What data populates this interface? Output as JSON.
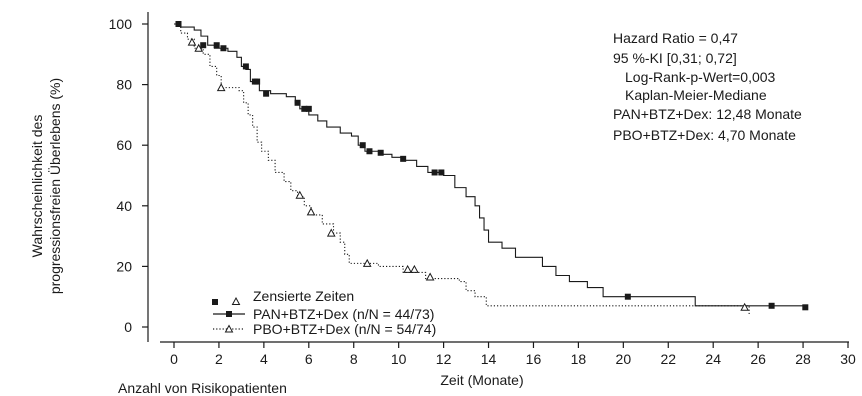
{
  "chart_data": {
    "type": "line",
    "subtype": "kaplan-meier",
    "xlabel": "Zeit (Monate)",
    "ylabel_line1": "Wahrscheinlichkeit des",
    "ylabel_line2": "progressionsfreien Überlebens (%)",
    "footer_label": "Anzahl von Risikopatienten",
    "xlim": [
      0,
      30
    ],
    "ylim": [
      0,
      100
    ],
    "x_ticks": [
      0,
      2,
      4,
      6,
      8,
      10,
      12,
      14,
      16,
      18,
      20,
      22,
      24,
      26,
      28,
      30
    ],
    "y_ticks": [
      0,
      20,
      40,
      60,
      80,
      100
    ],
    "grid": false,
    "annotations": [
      "Hazard Ratio = 0,47",
      "95 %-KI [0,31; 0,72]",
      "Log-Rank-p-Wert=0,003",
      "Kaplan-Meier-Mediane",
      "PAN+BTZ+Dex: 12,48 Monate",
      "PBO+BTZ+Dex: 4,70 Monate"
    ],
    "legend": {
      "placement": "bottom-left",
      "censor_label": "Zensierte Zeiten",
      "entries": [
        "PAN+BTZ+Dex (n/N = 44/73)",
        "PBO+BTZ+Dex (n/N = 54/74)"
      ]
    },
    "series": [
      {
        "name": "PAN+BTZ+Dex (n/N = 44/73)",
        "line_style": "solid",
        "marker": "filled-square",
        "color": "#1a1a1a",
        "steps": [
          [
            0,
            100
          ],
          [
            0.3,
            99
          ],
          [
            0.9,
            98
          ],
          [
            1.2,
            96
          ],
          [
            1.5,
            93
          ],
          [
            1.8,
            92
          ],
          [
            2.4,
            91
          ],
          [
            2.8,
            89
          ],
          [
            3.0,
            86
          ],
          [
            3.2,
            85
          ],
          [
            3.4,
            81
          ],
          [
            3.8,
            78
          ],
          [
            4.3,
            77
          ],
          [
            5.0,
            76
          ],
          [
            5.4,
            74
          ],
          [
            5.6,
            72
          ],
          [
            6.0,
            70
          ],
          [
            6.4,
            68
          ],
          [
            6.8,
            66
          ],
          [
            7.4,
            64
          ],
          [
            7.9,
            63
          ],
          [
            8.2,
            60
          ],
          [
            8.5,
            58
          ],
          [
            9.3,
            57
          ],
          [
            9.7,
            56
          ],
          [
            10.3,
            55
          ],
          [
            10.8,
            53
          ],
          [
            11.3,
            51
          ],
          [
            12.0,
            50
          ],
          [
            12.5,
            46
          ],
          [
            13.0,
            43
          ],
          [
            13.4,
            40
          ],
          [
            13.6,
            36
          ],
          [
            13.8,
            32
          ],
          [
            14.0,
            28
          ],
          [
            14.6,
            26
          ],
          [
            15.2,
            23
          ],
          [
            16.4,
            20
          ],
          [
            17.0,
            17
          ],
          [
            17.6,
            15
          ],
          [
            18.4,
            13
          ],
          [
            19.1,
            10
          ],
          [
            23.2,
            7
          ],
          [
            28,
            7
          ]
        ],
        "censored": [
          [
            0.2,
            100
          ],
          [
            1.3,
            93
          ],
          [
            1.9,
            93
          ],
          [
            2.2,
            92
          ],
          [
            3.2,
            86
          ],
          [
            3.6,
            81
          ],
          [
            3.7,
            81
          ],
          [
            4.1,
            77
          ],
          [
            5.5,
            74
          ],
          [
            5.8,
            72
          ],
          [
            6.0,
            72
          ],
          [
            8.4,
            60
          ],
          [
            8.7,
            58
          ],
          [
            9.2,
            57.5
          ],
          [
            10.2,
            55.5
          ],
          [
            11.6,
            51
          ],
          [
            11.9,
            51
          ],
          [
            20.2,
            10
          ],
          [
            26.6,
            7
          ],
          [
            28.1,
            6.5
          ]
        ]
      },
      {
        "name": "PBO+BTZ+Dex (n/N = 54/74)",
        "line_style": "dotted",
        "marker": "open-triangle",
        "color": "#1a1a1a",
        "steps": [
          [
            0,
            100
          ],
          [
            0.3,
            97
          ],
          [
            0.6,
            95
          ],
          [
            0.9,
            92
          ],
          [
            1.3,
            90
          ],
          [
            1.6,
            86
          ],
          [
            1.9,
            83
          ],
          [
            2.1,
            79
          ],
          [
            2.9,
            78
          ],
          [
            3.1,
            74
          ],
          [
            3.3,
            70
          ],
          [
            3.5,
            66
          ],
          [
            3.7,
            61
          ],
          [
            3.9,
            58
          ],
          [
            4.2,
            55
          ],
          [
            4.5,
            51
          ],
          [
            4.9,
            48
          ],
          [
            5.2,
            45
          ],
          [
            5.5,
            43
          ],
          [
            5.8,
            40
          ],
          [
            6.1,
            37
          ],
          [
            6.6,
            34
          ],
          [
            7.1,
            31
          ],
          [
            7.4,
            28
          ],
          [
            7.6,
            24
          ],
          [
            7.8,
            21
          ],
          [
            9.1,
            20
          ],
          [
            10.2,
            18
          ],
          [
            11.2,
            16
          ],
          [
            12.7,
            15
          ],
          [
            13.0,
            12
          ],
          [
            13.4,
            10
          ],
          [
            13.9,
            7
          ],
          [
            25.6,
            4
          ]
        ],
        "censored": [
          [
            0.8,
            94
          ],
          [
            1.1,
            92
          ],
          [
            2.1,
            79
          ],
          [
            5.6,
            43.5
          ],
          [
            6.1,
            38
          ],
          [
            7.0,
            31
          ],
          [
            8.6,
            21
          ],
          [
            10.4,
            19
          ],
          [
            10.7,
            19
          ],
          [
            11.4,
            16.5
          ],
          [
            25.4,
            6.5
          ]
        ]
      }
    ]
  }
}
